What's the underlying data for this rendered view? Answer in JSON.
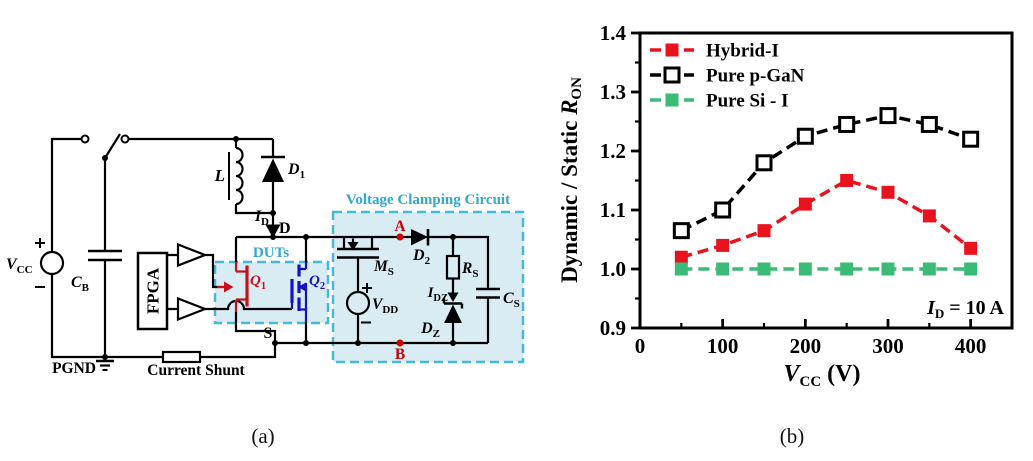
{
  "figure": {
    "panel_a_caption": "(a)",
    "panel_b_caption": "(b)"
  },
  "circuit": {
    "labels": {
      "vcc": {
        "main": "V",
        "sub": "CC"
      },
      "cb": {
        "main": "C",
        "sub": "B"
      },
      "pgnd": "PGND",
      "current_shunt": "Current Shunt",
      "fpga": "FPGA",
      "l": {
        "main": "L"
      },
      "d1": {
        "main": "D",
        "sub": "1"
      },
      "id": {
        "main": "I",
        "sub": "D"
      },
      "node_d": "D",
      "node_s": "S",
      "duts": "DUTs",
      "q1": {
        "main": "Q",
        "sub": "1"
      },
      "q2": {
        "main": "Q",
        "sub": "2"
      },
      "clamp_title": "Voltage Clamping Circuit",
      "ms": {
        "main": "M",
        "sub": "S"
      },
      "vdd": {
        "main": "V",
        "sub": "DD"
      },
      "node_a": "A",
      "node_b": "B",
      "d2": {
        "main": "D",
        "sub": "2"
      },
      "rs": {
        "main": "R",
        "sub": "S"
      },
      "idz": {
        "main": "I",
        "sub": "DZ"
      },
      "dz": {
        "main": "D",
        "sub": "Z"
      },
      "cs": {
        "main": "C",
        "sub": "S"
      }
    },
    "colors": {
      "wire": "#000000",
      "q1_red": "#c8101a",
      "q2_blue": "#1212cc",
      "node_red": "#cc0000",
      "box_dash": "#45b9d9",
      "box_fill": "#d9ecf4",
      "cyan_text": "#2fa9cf"
    }
  },
  "chart_data": {
    "type": "line",
    "xlabel": {
      "main": "V",
      "sub": "CC",
      "unit": " (V)"
    },
    "ylabel": {
      "text": "Dynamic / Static ",
      "var": "R",
      "sub": "ON"
    },
    "xlim": [
      0,
      450
    ],
    "ylim": [
      0.9,
      1.4
    ],
    "x_major_ticks": [
      0,
      100,
      200,
      300,
      400
    ],
    "x_tick_labels": [
      "0",
      "100",
      "200",
      "300",
      "400"
    ],
    "x_minor_step": 50,
    "y_major_ticks": [
      0.9,
      1.0,
      1.1,
      1.2,
      1.3,
      1.4
    ],
    "y_tick_labels": [
      "0.9",
      "1.0",
      "1.1",
      "1.2",
      "1.3",
      "1.4"
    ],
    "y_minor_step": 0.05,
    "grid": false,
    "legend_position": "top-left",
    "x": [
      50,
      100,
      150,
      200,
      250,
      300,
      350,
      400
    ],
    "series": [
      {
        "name": "Pure p-GaN",
        "color": "#000000",
        "marker": "open-square",
        "values": [
          1.065,
          1.1,
          1.18,
          1.225,
          1.245,
          1.26,
          1.245,
          1.22
        ]
      },
      {
        "name": "Hybrid-I",
        "color": "#e8131d",
        "marker": "filled-square",
        "values": [
          1.02,
          1.04,
          1.065,
          1.11,
          1.15,
          1.13,
          1.09,
          1.035
        ]
      },
      {
        "name": "Pure Si - I",
        "color": "#3abc76",
        "marker": "filled-square",
        "values": [
          1.0,
          1.0,
          1.0,
          1.0,
          1.0,
          1.0,
          1.0,
          1.0
        ]
      }
    ],
    "legend_order": [
      "Hybrid-I",
      "Pure p-GaN",
      "Pure Si - I"
    ],
    "annotation": {
      "main": "I",
      "sub": "D",
      "rest": " = 10 A"
    }
  }
}
